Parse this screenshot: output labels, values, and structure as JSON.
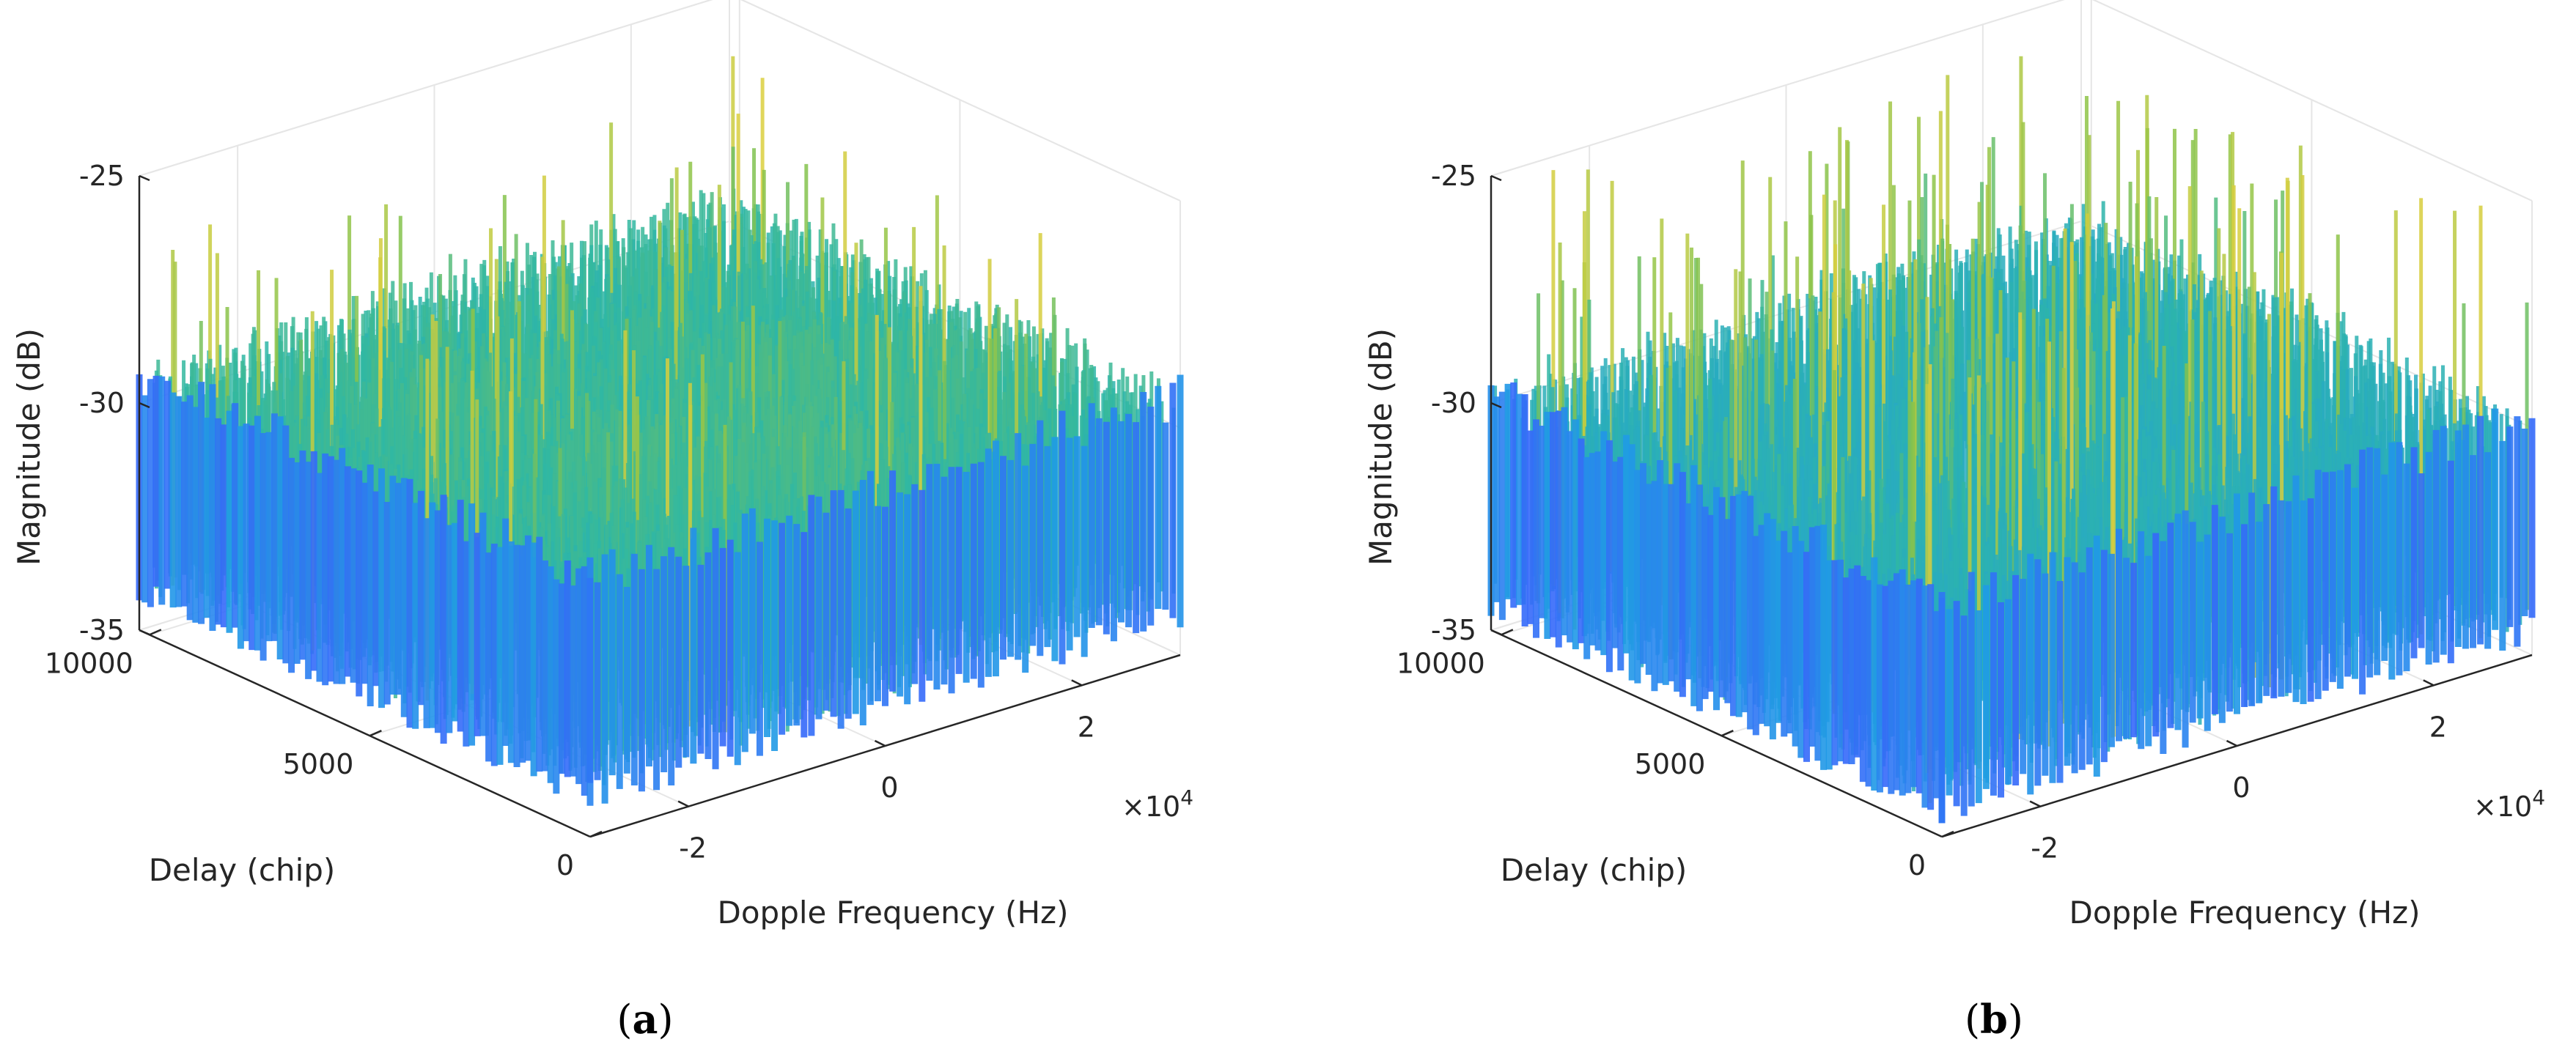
{
  "chart_data": [
    {
      "panel_label": "a",
      "type": "surface3d",
      "xlabel": "Dopple Frequency (Hz)",
      "ylabel": "Delay (chip)",
      "zlabel": "Magnitude (dB)",
      "x_ticks": [
        "-2",
        "0",
        "2"
      ],
      "x_tick_values": [
        -20000,
        0,
        20000
      ],
      "x_exponent": "×10",
      "x_exponent_power": "4",
      "y_ticks": [
        "0",
        "5000",
        "10000"
      ],
      "y_tick_values": [
        0,
        5000,
        10000
      ],
      "z_ticks": [
        "-25",
        "-30",
        "-35"
      ],
      "z_tick_values": [
        -25,
        -30,
        -35
      ],
      "xlim": [
        -30000,
        30000
      ],
      "ylim": [
        0,
        10230
      ],
      "zlim": [
        -35,
        -25
      ],
      "grid": true,
      "colormap": [
        "#3b5bff",
        "#1f9be6",
        "#2fb7a4",
        "#88c34a",
        "#f3d23a"
      ],
      "floor_db": -32.5,
      "mean_top_db": -29.3,
      "peak_db": -25.8,
      "spike_density": "moderate",
      "peaks": [
        [
          15,
          3,
          0.9
        ],
        [
          10,
          6,
          0.8
        ],
        [
          20,
          9,
          0.75
        ],
        [
          8,
          13,
          0.7
        ],
        [
          25,
          5,
          0.65
        ]
      ]
    },
    {
      "panel_label": "b",
      "type": "surface3d",
      "xlabel": "Dopple Frequency (Hz)",
      "ylabel": "Delay (chip)",
      "zlabel": "Magnitude (dB)",
      "x_ticks": [
        "-2",
        "0",
        "2"
      ],
      "x_tick_values": [
        -20000,
        0,
        20000
      ],
      "x_exponent": "×10",
      "x_exponent_power": "4",
      "y_ticks": [
        "0",
        "5000",
        "10000"
      ],
      "y_tick_values": [
        0,
        5000,
        10000
      ],
      "z_ticks": [
        "-25",
        "-30",
        "-35"
      ],
      "z_tick_values": [
        -25,
        -30,
        -35
      ],
      "xlim": [
        -30000,
        30000
      ],
      "ylim": [
        0,
        10230
      ],
      "zlim": [
        -35,
        -25
      ],
      "grid": true,
      "colormap": [
        "#3b5bff",
        "#1f9be6",
        "#2fb7a4",
        "#88c34a",
        "#f3d23a"
      ],
      "floor_db": -32.8,
      "mean_top_db": -29.8,
      "peak_db": -24.6,
      "spike_density": "high",
      "peaks": [
        [
          12,
          8,
          0.85
        ],
        [
          22,
          12,
          0.8
        ],
        [
          6,
          4,
          0.7
        ],
        [
          18,
          18,
          0.75
        ],
        [
          28,
          9,
          0.6
        ]
      ]
    }
  ]
}
